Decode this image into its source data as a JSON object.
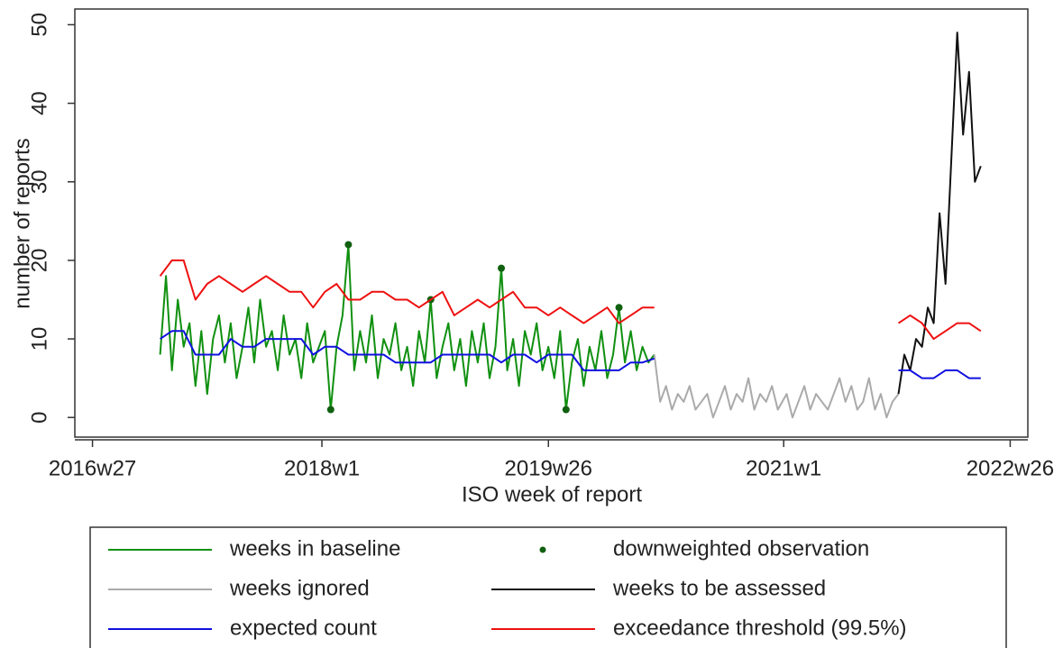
{
  "chart_data": {
    "type": "line",
    "x_label": "ISO week of report",
    "y_label": "number of reports",
    "xlim": [
      "2016w21",
      "2022w32"
    ],
    "xticks": [
      "2016w27",
      "2018w1",
      "2019w26",
      "2021w1",
      "2022w26"
    ],
    "ylim": [
      -2.5,
      52
    ],
    "yticks": [
      0,
      10,
      20,
      30,
      40,
      50
    ],
    "series": [
      {
        "name": "weeks in baseline",
        "color": "#109010",
        "style": "line",
        "x": [
          "2016w50",
          "2016w52",
          "2017w2",
          "2017w4",
          "2017w6",
          "2017w8",
          "2017w10",
          "2017w12",
          "2017w14",
          "2017w16",
          "2017w18",
          "2017w20",
          "2017w22",
          "2017w24",
          "2017w26",
          "2017w28",
          "2017w30",
          "2017w32",
          "2017w34",
          "2017w36",
          "2017w38",
          "2017w40",
          "2017w42",
          "2017w44",
          "2017w46",
          "2017w48",
          "2017w50",
          "2017w52",
          "2018w2",
          "2018w4",
          "2018w6",
          "2018w8",
          "2018w10",
          "2018w12",
          "2018w14",
          "2018w16",
          "2018w18",
          "2018w20",
          "2018w22",
          "2018w24",
          "2018w26",
          "2018w28",
          "2018w30",
          "2018w32",
          "2018w34",
          "2018w36",
          "2018w38",
          "2018w40",
          "2018w42",
          "2018w44",
          "2018w46",
          "2018w48",
          "2018w50",
          "2018w52",
          "2019w2",
          "2019w4",
          "2019w6",
          "2019w8",
          "2019w10",
          "2019w12",
          "2019w14",
          "2019w16",
          "2019w18",
          "2019w20",
          "2019w22",
          "2019w24",
          "2019w26",
          "2019w28",
          "2019w30",
          "2019w32",
          "2019w34",
          "2019w36",
          "2019w38",
          "2019w40",
          "2019w42",
          "2019w44",
          "2019w46",
          "2019w48",
          "2019w50",
          "2019w52",
          "2020w2",
          "2020w4",
          "2020w6",
          "2020w8",
          "2020w10"
        ],
        "values": [
          8,
          18,
          6,
          15,
          9,
          12,
          4,
          11,
          3,
          10,
          13,
          7,
          12,
          5,
          9,
          14,
          7,
          15,
          9,
          11,
          6,
          13,
          8,
          10,
          5,
          12,
          7,
          9,
          11,
          1,
          9,
          13,
          22,
          6,
          11,
          7,
          13,
          5,
          10,
          8,
          12,
          6,
          9,
          4,
          11,
          7,
          15,
          5,
          9,
          12,
          6,
          10,
          4,
          11,
          7,
          12,
          5,
          9,
          19,
          6,
          10,
          4,
          11,
          8,
          12,
          6,
          9,
          5,
          11,
          1,
          7,
          10,
          4,
          9,
          6,
          11,
          5,
          8,
          14,
          7,
          11,
          6,
          9,
          7,
          8
        ]
      },
      {
        "name": "downweighted observation",
        "color": "#106010",
        "style": "point",
        "x": [
          "2018w4",
          "2018w10",
          "2018w38",
          "2019w10",
          "2019w32",
          "2019w50"
        ],
        "values": [
          1,
          22,
          15,
          19,
          1,
          14
        ]
      },
      {
        "name": "weeks ignored",
        "color": "#aaaaaa",
        "style": "line",
        "x": [
          "2020w10",
          "2020w12",
          "2020w14",
          "2020w16",
          "2020w18",
          "2020w20",
          "2020w22",
          "2020w24",
          "2020w26",
          "2020w28",
          "2020w30",
          "2020w32",
          "2020w34",
          "2020w36",
          "2020w38",
          "2020w40",
          "2020w42",
          "2020w44",
          "2020w46",
          "2020w48",
          "2020w50",
          "2020w52",
          "2021w2",
          "2021w4",
          "2021w6",
          "2021w8",
          "2021w10",
          "2021w12",
          "2021w14",
          "2021w16",
          "2021w18",
          "2021w20",
          "2021w22",
          "2021w24",
          "2021w26",
          "2021w28",
          "2021w30",
          "2021w32",
          "2021w34",
          "2021w36",
          "2021w38",
          "2021w40"
        ],
        "values": [
          8,
          2,
          4,
          1,
          3,
          2,
          4,
          1,
          2,
          3,
          0,
          2,
          4,
          1,
          3,
          2,
          5,
          1,
          3,
          2,
          4,
          1,
          3,
          0,
          2,
          4,
          1,
          3,
          2,
          1,
          3,
          5,
          2,
          4,
          1,
          2,
          5,
          1,
          3,
          0,
          2,
          3
        ]
      },
      {
        "name": "weeks to be assessed",
        "color": "#111111",
        "style": "line",
        "x": [
          "2021w40",
          "2021w42",
          "2021w44",
          "2021w46",
          "2021w48",
          "2021w50",
          "2021w52",
          "2022w2",
          "2022w4",
          "2022w6",
          "2022w8",
          "2022w10",
          "2022w12",
          "2022w14",
          "2022w16"
        ],
        "values": [
          3,
          8,
          6,
          10,
          9,
          14,
          12,
          26,
          17,
          33,
          49,
          36,
          44,
          30,
          32
        ]
      },
      {
        "name": "expected count",
        "color": "#1010e0",
        "style": "line",
        "x": [
          "2016w50",
          "2017w2",
          "2017w6",
          "2017w10",
          "2017w14",
          "2017w18",
          "2017w22",
          "2017w26",
          "2017w30",
          "2017w34",
          "2017w38",
          "2017w42",
          "2017w46",
          "2017w50",
          "2018w2",
          "2018w6",
          "2018w10",
          "2018w14",
          "2018w18",
          "2018w22",
          "2018w26",
          "2018w30",
          "2018w34",
          "2018w38",
          "2018w42",
          "2018w46",
          "2018w50",
          "2019w2",
          "2019w6",
          "2019w10",
          "2019w14",
          "2019w18",
          "2019w22",
          "2019w26",
          "2019w30",
          "2019w34",
          "2019w38",
          "2019w42",
          "2019w46",
          "2019w50",
          "2020w2",
          "2020w6",
          "2020w10",
          "2021w1",
          "2021w40",
          "2021w44",
          "2021w48",
          "2021w52",
          "2022w4",
          "2022w8",
          "2022w12",
          "2022w16"
        ],
        "values": [
          10,
          11,
          11,
          8,
          8,
          8,
          10,
          9,
          9,
          10,
          10,
          10,
          10,
          8,
          9,
          9,
          8,
          8,
          8,
          8,
          7,
          7,
          7,
          7,
          8,
          8,
          8,
          8,
          8,
          7,
          8,
          8,
          7,
          8,
          8,
          8,
          6,
          6,
          6,
          6,
          7,
          7,
          7.5,
          null,
          6,
          6,
          5,
          5,
          6,
          6,
          5,
          5
        ]
      },
      {
        "name": "exceedance threshold (99.5%)",
        "color": "#ee1010",
        "style": "line",
        "x": [
          "2016w50",
          "2017w2",
          "2017w6",
          "2017w10",
          "2017w14",
          "2017w18",
          "2017w22",
          "2017w26",
          "2017w30",
          "2017w34",
          "2017w38",
          "2017w42",
          "2017w46",
          "2017w50",
          "2018w2",
          "2018w6",
          "2018w10",
          "2018w14",
          "2018w18",
          "2018w22",
          "2018w26",
          "2018w30",
          "2018w34",
          "2018w38",
          "2018w42",
          "2018w46",
          "2018w50",
          "2019w2",
          "2019w6",
          "2019w10",
          "2019w14",
          "2019w18",
          "2019w22",
          "2019w26",
          "2019w30",
          "2019w34",
          "2019w38",
          "2019w42",
          "2019w46",
          "2019w50",
          "2020w2",
          "2020w6",
          "2020w10",
          "2021w1",
          "2021w40",
          "2021w44",
          "2021w48",
          "2021w52",
          "2022w4",
          "2022w8",
          "2022w12",
          "2022w16"
        ],
        "values": [
          18,
          20,
          20,
          15,
          17,
          18,
          17,
          16,
          17,
          18,
          17,
          16,
          16,
          14,
          16,
          17,
          15,
          15,
          16,
          16,
          15,
          15,
          14,
          15,
          16,
          13,
          14,
          15,
          14,
          15,
          16,
          14,
          14,
          13,
          14,
          13,
          12,
          13,
          14,
          12,
          13,
          14,
          14,
          null,
          12,
          13,
          12,
          10,
          11,
          12,
          12,
          11
        ]
      }
    ]
  }
}
